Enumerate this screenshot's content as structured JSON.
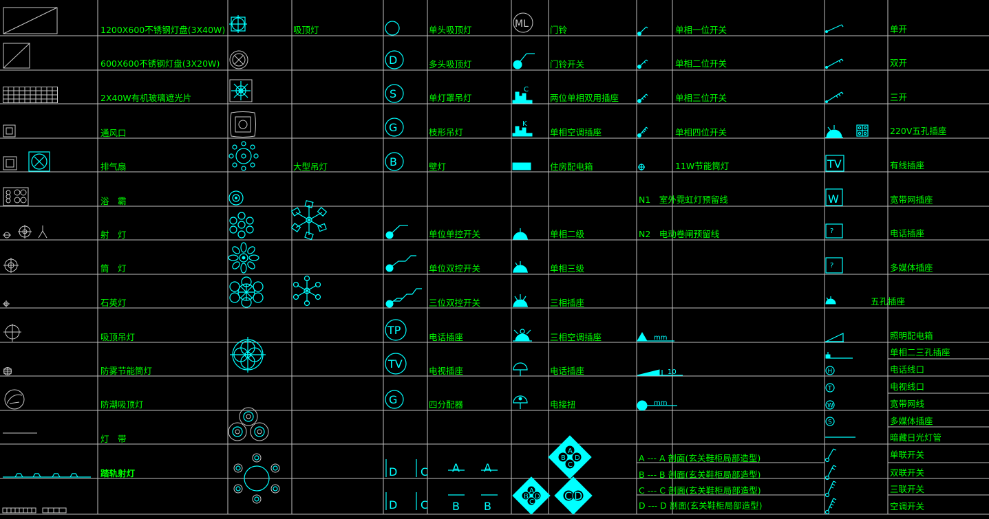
{
  "legend": {
    "colors": {
      "background": "#000000",
      "grid": "#c0c0c0",
      "label": "#00ff00",
      "symbol": "#00ffff",
      "gray_symbol": "#c8c8c8"
    },
    "col1": [
      "1200X600不锈钢灯盘(3X40W)",
      "600X600不锈钢灯盘(3X20W)",
      "2X40W有机玻璃遮光片",
      "通风口",
      "排气扇",
      "浴　霸",
      "射　灯",
      "筒　灯",
      "石英灯",
      "吸顶吊灯",
      "防雾节能筒灯",
      "防潮吸顶灯",
      "灯　带",
      "踏轨射灯"
    ],
    "col2": {
      "top": "吸顶灯",
      "big": "大型吊灯"
    },
    "col3": [
      "单头吸顶灯",
      "多头吸顶灯",
      "单灯罩吊灯",
      "枝形吊灯",
      "壁灯",
      "单位单控开关",
      "单位双控开关",
      "三位双控开关",
      "电话插座",
      "电视插座",
      "四分配器"
    ],
    "col3_letters": {
      "ml": "ML",
      "d": "D",
      "s": "S",
      "g": "G",
      "b": "B",
      "tp": "TP",
      "tv": "TV",
      "g2": "G"
    },
    "col3_sections": [
      "D",
      "C",
      "A",
      "A",
      "D",
      "C",
      "B",
      "B"
    ],
    "col4": [
      "门铃",
      "门铃开关",
      "两位单相双用插座",
      "单相空调插座",
      "住房配电箱",
      "单相二级",
      "单相三级",
      "三相插座",
      "三相空调插座",
      "电话插座",
      "电接扭"
    ],
    "col4_letters": {
      "c": "C",
      "k": "K",
      "a": "A",
      "b": "B",
      "c2": "C",
      "d": "D"
    },
    "col5": [
      "单相一位开关",
      "单相二位开关",
      "单相三位开关",
      "单相四位开关",
      "11W节能筒灯",
      "N1　室外霓虹灯预留线",
      "N2　电动卷闸预留线"
    ],
    "col5_marks": {
      "m1": "mm",
      "m2": "10",
      "m3": "mm"
    },
    "sections": [
      "A --- A 剖面(玄关鞋柜局部造型)",
      "B --- B 剖面(玄关鞋柜局部造型)",
      "C --- C 剖面(玄关鞋柜局部造型)",
      "D --- D 剖面(玄关鞋柜局部造型)"
    ],
    "col6": [
      "单开",
      "双开",
      "三开",
      "220V五孔插座",
      "有线插座",
      "宽带网插座",
      "电话插座",
      "多媒体插座",
      "五孔插座",
      "照明配电箱",
      "单相二三孔插座",
      "电话线口",
      "电视线口",
      "宽带网线",
      "多媒体插座",
      "暗藏日光灯管",
      "单联开关",
      "双联开关",
      "三联开关",
      "空调开关"
    ],
    "col6_letters": {
      "tv": "TV",
      "w": "W",
      "q1": "?",
      "q2": "?",
      "h": "H",
      "t": "T",
      "w2": "W",
      "s": "S"
    }
  }
}
